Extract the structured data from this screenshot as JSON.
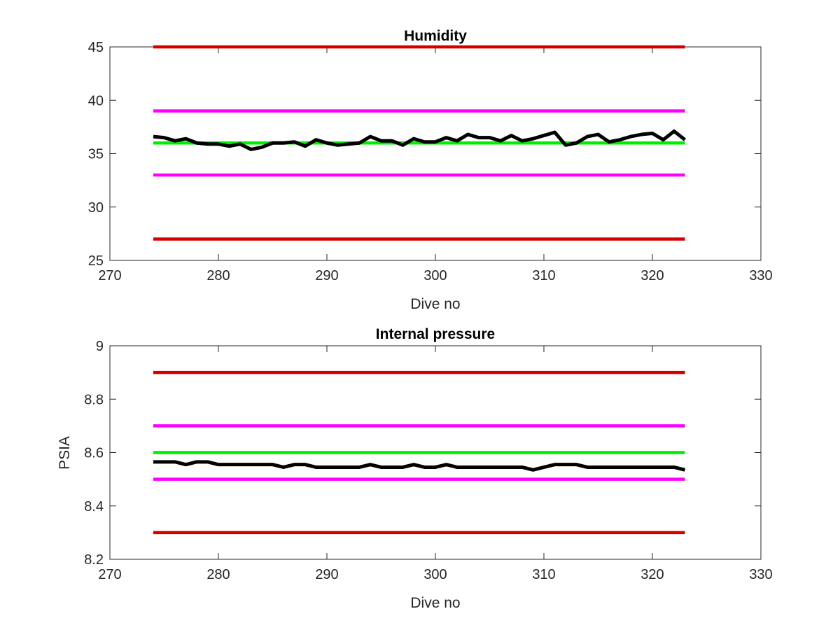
{
  "chart_data": [
    {
      "type": "line",
      "title": "Humidity",
      "xlabel": "Dive no",
      "ylabel": "",
      "xlim": [
        270,
        330
      ],
      "ylim": [
        25,
        45
      ],
      "xticks": [
        270,
        280,
        290,
        300,
        310,
        320,
        330
      ],
      "yticks": [
        25,
        30,
        35,
        40,
        45
      ],
      "xtick_labels": [
        "270",
        "280",
        "290",
        "300",
        "310",
        "320",
        "330"
      ],
      "ytick_labels": [
        "25",
        "30",
        "35",
        "40",
        "45"
      ],
      "grid": false,
      "series": [
        {
          "color": "#d40000",
          "x": [
            274,
            323
          ],
          "y": [
            45,
            45
          ]
        },
        {
          "color": "#ff00ff",
          "x": [
            274,
            323
          ],
          "y": [
            39,
            39
          ]
        },
        {
          "color": "#00ee00",
          "x": [
            274,
            323
          ],
          "y": [
            36,
            36
          ]
        },
        {
          "color": "#ff00ff",
          "x": [
            274,
            323
          ],
          "y": [
            33,
            33
          ]
        },
        {
          "color": "#d40000",
          "x": [
            274,
            323
          ],
          "y": [
            27,
            27
          ]
        },
        {
          "color": "#000000",
          "x": [
            274,
            275,
            276,
            277,
            278,
            279,
            280,
            281,
            282,
            283,
            284,
            285,
            286,
            287,
            288,
            289,
            290,
            291,
            292,
            293,
            294,
            295,
            296,
            297,
            298,
            299,
            300,
            301,
            302,
            303,
            304,
            305,
            306,
            307,
            308,
            309,
            310,
            311,
            312,
            313,
            314,
            315,
            316,
            317,
            318,
            319,
            320,
            321,
            322,
            323
          ],
          "y": [
            36.6,
            36.5,
            36.2,
            36.4,
            36.0,
            35.9,
            35.9,
            35.7,
            35.9,
            35.4,
            35.6,
            36.0,
            36.0,
            36.1,
            35.7,
            36.3,
            36.0,
            35.8,
            35.9,
            36.0,
            36.6,
            36.2,
            36.2,
            35.8,
            36.4,
            36.1,
            36.1,
            36.5,
            36.2,
            36.8,
            36.5,
            36.5,
            36.2,
            36.7,
            36.2,
            36.4,
            36.7,
            37.0,
            35.8,
            36.0,
            36.6,
            36.8,
            36.1,
            36.3,
            36.6,
            36.8,
            36.9,
            36.3,
            37.1,
            36.3
          ]
        }
      ]
    },
    {
      "type": "line",
      "title": "Internal pressure",
      "xlabel": "Dive no",
      "ylabel": "PSIA",
      "xlim": [
        270,
        330
      ],
      "ylim": [
        8.2,
        9.0
      ],
      "xticks": [
        270,
        280,
        290,
        300,
        310,
        320,
        330
      ],
      "yticks": [
        8.2,
        8.4,
        8.6,
        8.8,
        9.0
      ],
      "xtick_labels": [
        "270",
        "280",
        "290",
        "300",
        "310",
        "320",
        "330"
      ],
      "ytick_labels": [
        "8.2",
        "8.4",
        "8.6",
        "8.8",
        "9"
      ],
      "grid": false,
      "series": [
        {
          "color": "#d40000",
          "x": [
            274,
            323
          ],
          "y": [
            8.9,
            8.9
          ]
        },
        {
          "color": "#ff00ff",
          "x": [
            274,
            323
          ],
          "y": [
            8.7,
            8.7
          ]
        },
        {
          "color": "#00ee00",
          "x": [
            274,
            323
          ],
          "y": [
            8.6,
            8.6
          ]
        },
        {
          "color": "#ff00ff",
          "x": [
            274,
            323
          ],
          "y": [
            8.5,
            8.5
          ]
        },
        {
          "color": "#d40000",
          "x": [
            274,
            323
          ],
          "y": [
            8.3,
            8.3
          ]
        },
        {
          "color": "#000000",
          "x": [
            274,
            275,
            276,
            277,
            278,
            279,
            280,
            281,
            282,
            283,
            284,
            285,
            286,
            287,
            288,
            289,
            290,
            291,
            292,
            293,
            294,
            295,
            296,
            297,
            298,
            299,
            300,
            301,
            302,
            303,
            304,
            305,
            306,
            307,
            308,
            309,
            310,
            311,
            312,
            313,
            314,
            315,
            316,
            317,
            318,
            319,
            320,
            321,
            322,
            323
          ],
          "y": [
            8.565,
            8.565,
            8.565,
            8.555,
            8.565,
            8.565,
            8.555,
            8.555,
            8.555,
            8.555,
            8.555,
            8.555,
            8.545,
            8.555,
            8.555,
            8.545,
            8.545,
            8.545,
            8.545,
            8.545,
            8.555,
            8.545,
            8.545,
            8.545,
            8.555,
            8.545,
            8.545,
            8.555,
            8.545,
            8.545,
            8.545,
            8.545,
            8.545,
            8.545,
            8.545,
            8.535,
            8.545,
            8.555,
            8.555,
            8.555,
            8.545,
            8.545,
            8.545,
            8.545,
            8.545,
            8.545,
            8.545,
            8.545,
            8.545,
            8.535
          ]
        }
      ]
    }
  ]
}
